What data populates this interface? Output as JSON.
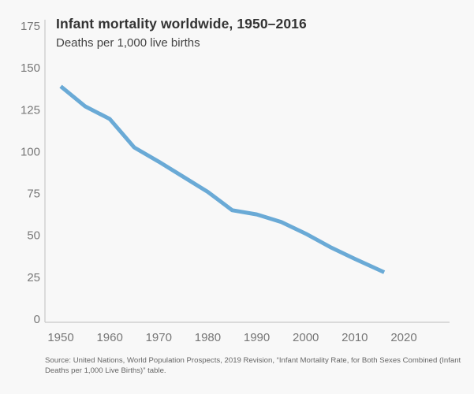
{
  "chart_data": {
    "type": "line",
    "title": "Infant mortality worldwide, 1950–2016",
    "subtitle": "Deaths per 1,000 live births",
    "xlabel": "",
    "ylabel": "Deaths per 1,000 live births",
    "xlim": [
      1948,
      2029
    ],
    "ylim": [
      0,
      175
    ],
    "x_ticks": [
      1950,
      1960,
      1970,
      1980,
      1990,
      2000,
      2010,
      2020
    ],
    "y_ticks": [
      0,
      25,
      50,
      75,
      100,
      125,
      150,
      175
    ],
    "grid": false,
    "legend": "none",
    "series": [
      {
        "name": "Infant mortality rate",
        "color": "#6aaad6",
        "x": [
          1950,
          1955,
          1960,
          1965,
          1970,
          1975,
          1980,
          1985,
          1990,
          1995,
          2000,
          2005,
          2010,
          2016
        ],
        "values": [
          139,
          127,
          119.5,
          102.5,
          94,
          85,
          76,
          65,
          62.5,
          58,
          51,
          43,
          36,
          28
        ]
      }
    ],
    "source": "Source: United Nations, World Population Prospects, 2019 Revision, “Infant Mortality Rate, for Both Sexes Combined (Infant Deaths per 1,000 Live Births)” table."
  },
  "colors": {
    "background": "#f8f8f8",
    "line": "#6aaad6",
    "axis": "#c8c8c8",
    "title": "#333333",
    "tick_label": "#777777"
  }
}
